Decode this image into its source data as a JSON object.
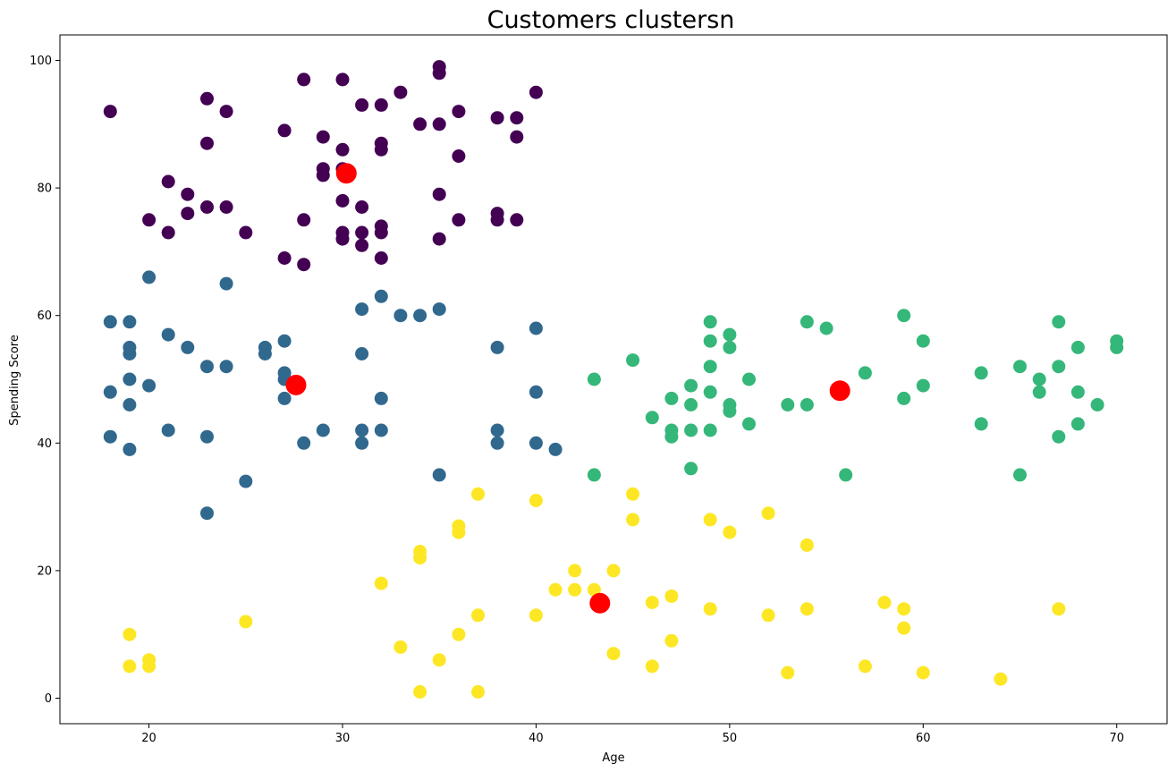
{
  "chart_data": {
    "type": "scatter",
    "title": "Customers clustersn",
    "xlabel": "Age",
    "ylabel": "Spending Score",
    "xlim": [
      15.4,
      72.6
    ],
    "ylim": [
      -4,
      104
    ],
    "xticks": [
      20,
      30,
      40,
      50,
      60,
      70
    ],
    "yticks": [
      0,
      20,
      40,
      60,
      80,
      100
    ],
    "grid": false,
    "series": [
      {
        "color": "#440154",
        "points": [
          [
            18,
            92
          ],
          [
            20,
            75
          ],
          [
            21,
            81
          ],
          [
            21,
            73
          ],
          [
            22,
            79
          ],
          [
            22,
            76
          ],
          [
            23,
            94
          ],
          [
            23,
            87
          ],
          [
            23,
            77
          ],
          [
            24,
            92
          ],
          [
            24,
            77
          ],
          [
            25,
            73
          ],
          [
            27,
            89
          ],
          [
            27,
            69
          ],
          [
            28,
            97
          ],
          [
            28,
            75
          ],
          [
            28,
            68
          ],
          [
            29,
            88
          ],
          [
            29,
            83
          ],
          [
            29,
            82
          ],
          [
            30,
            97
          ],
          [
            30,
            86
          ],
          [
            30,
            83
          ],
          [
            30,
            78
          ],
          [
            30,
            73
          ],
          [
            30,
            72
          ],
          [
            31,
            93
          ],
          [
            31,
            77
          ],
          [
            31,
            73
          ],
          [
            31,
            71
          ],
          [
            32,
            93
          ],
          [
            32,
            87
          ],
          [
            32,
            86
          ],
          [
            32,
            74
          ],
          [
            32,
            73
          ],
          [
            32,
            69
          ],
          [
            33,
            95
          ],
          [
            34,
            90
          ],
          [
            35,
            99
          ],
          [
            35,
            98
          ],
          [
            35,
            90
          ],
          [
            35,
            79
          ],
          [
            35,
            72
          ],
          [
            36,
            92
          ],
          [
            36,
            85
          ],
          [
            36,
            75
          ],
          [
            38,
            91
          ],
          [
            38,
            76
          ],
          [
            38,
            75
          ],
          [
            39,
            91
          ],
          [
            39,
            88
          ],
          [
            39,
            75
          ],
          [
            40,
            95
          ]
        ]
      },
      {
        "color": "#31688e",
        "points": [
          [
            18,
            59
          ],
          [
            18,
            48
          ],
          [
            18,
            41
          ],
          [
            19,
            59
          ],
          [
            19,
            55
          ],
          [
            19,
            54
          ],
          [
            19,
            50
          ],
          [
            19,
            46
          ],
          [
            19,
            39
          ],
          [
            20,
            66
          ],
          [
            20,
            49
          ],
          [
            21,
            57
          ],
          [
            21,
            42
          ],
          [
            22,
            55
          ],
          [
            23,
            52
          ],
          [
            23,
            41
          ],
          [
            23,
            29
          ],
          [
            24,
            65
          ],
          [
            24,
            52
          ],
          [
            25,
            34
          ],
          [
            26,
            55
          ],
          [
            26,
            54
          ],
          [
            27,
            56
          ],
          [
            27,
            51
          ],
          [
            27,
            50
          ],
          [
            27,
            47
          ],
          [
            28,
            40
          ],
          [
            29,
            42
          ],
          [
            31,
            61
          ],
          [
            31,
            54
          ],
          [
            31,
            42
          ],
          [
            31,
            40
          ],
          [
            32,
            63
          ],
          [
            32,
            47
          ],
          [
            32,
            42
          ],
          [
            33,
            60
          ],
          [
            34,
            60
          ],
          [
            35,
            61
          ],
          [
            35,
            35
          ],
          [
            38,
            55
          ],
          [
            38,
            42
          ],
          [
            38,
            40
          ],
          [
            40,
            58
          ],
          [
            40,
            48
          ],
          [
            40,
            40
          ],
          [
            41,
            39
          ]
        ]
      },
      {
        "color": "#35b779",
        "points": [
          [
            43,
            50
          ],
          [
            43,
            35
          ],
          [
            45,
            53
          ],
          [
            46,
            44
          ],
          [
            47,
            47
          ],
          [
            47,
            42
          ],
          [
            47,
            41
          ],
          [
            48,
            49
          ],
          [
            48,
            46
          ],
          [
            48,
            42
          ],
          [
            48,
            36
          ],
          [
            49,
            59
          ],
          [
            49,
            56
          ],
          [
            49,
            52
          ],
          [
            49,
            48
          ],
          [
            49,
            42
          ],
          [
            50,
            57
          ],
          [
            50,
            55
          ],
          [
            50,
            46
          ],
          [
            50,
            45
          ],
          [
            51,
            50
          ],
          [
            51,
            43
          ],
          [
            53,
            46
          ],
          [
            54,
            59
          ],
          [
            54,
            46
          ],
          [
            55,
            58
          ],
          [
            56,
            35
          ],
          [
            57,
            51
          ],
          [
            59,
            60
          ],
          [
            59,
            47
          ],
          [
            60,
            56
          ],
          [
            60,
            49
          ],
          [
            63,
            51
          ],
          [
            63,
            43
          ],
          [
            65,
            52
          ],
          [
            65,
            35
          ],
          [
            66,
            50
          ],
          [
            66,
            48
          ],
          [
            67,
            59
          ],
          [
            67,
            52
          ],
          [
            67,
            41
          ],
          [
            68,
            55
          ],
          [
            68,
            48
          ],
          [
            68,
            43
          ],
          [
            69,
            46
          ],
          [
            70,
            56
          ],
          [
            70,
            55
          ]
        ]
      },
      {
        "color": "#fde725",
        "points": [
          [
            19,
            10
          ],
          [
            19,
            5
          ],
          [
            20,
            6
          ],
          [
            20,
            5
          ],
          [
            25,
            12
          ],
          [
            32,
            18
          ],
          [
            33,
            8
          ],
          [
            34,
            23
          ],
          [
            34,
            22
          ],
          [
            34,
            1
          ],
          [
            35,
            6
          ],
          [
            36,
            27
          ],
          [
            36,
            26
          ],
          [
            36,
            10
          ],
          [
            37,
            32
          ],
          [
            37,
            13
          ],
          [
            37,
            1
          ],
          [
            40,
            31
          ],
          [
            40,
            13
          ],
          [
            41,
            17
          ],
          [
            42,
            20
          ],
          [
            42,
            17
          ],
          [
            43,
            17
          ],
          [
            44,
            20
          ],
          [
            44,
            7
          ],
          [
            45,
            32
          ],
          [
            45,
            28
          ],
          [
            46,
            15
          ],
          [
            46,
            5
          ],
          [
            47,
            16
          ],
          [
            47,
            9
          ],
          [
            49,
            28
          ],
          [
            49,
            14
          ],
          [
            50,
            26
          ],
          [
            52,
            29
          ],
          [
            52,
            13
          ],
          [
            53,
            4
          ],
          [
            54,
            24
          ],
          [
            54,
            14
          ],
          [
            57,
            5
          ],
          [
            58,
            15
          ],
          [
            59,
            14
          ],
          [
            59,
            11
          ],
          [
            60,
            4
          ],
          [
            64,
            3
          ],
          [
            67,
            14
          ]
        ]
      }
    ],
    "centroids": {
      "color": "#ff0000",
      "points": [
        [
          30.2,
          82.3
        ],
        [
          27.6,
          49.1
        ],
        [
          55.7,
          48.2
        ],
        [
          43.3,
          14.9
        ]
      ]
    }
  }
}
